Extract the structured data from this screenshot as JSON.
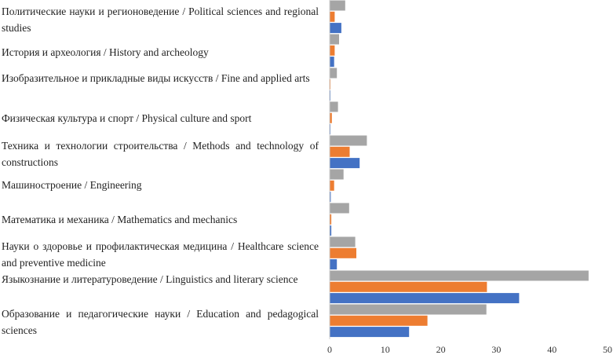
{
  "chart_data": {
    "type": "bar",
    "orientation": "horizontal",
    "title": "",
    "xlabel": "",
    "ylabel": "",
    "xlim": [
      0,
      50
    ],
    "x_ticks": [
      "0",
      "10",
      "20",
      "30",
      "40",
      "50"
    ],
    "grid": false,
    "legend": "none",
    "categories": [
      "Политические науки и регионоведение / Political sciences and regional studies",
      "История и археология / History and archeology",
      "Изобразительное и прикладные виды искусств / Fine and applied arts",
      "Физическая культура и спорт / Physical culture and sport",
      "Техника и технологии строительства / Methods and technology of constructions",
      "Машиностроение / Engineering",
      "Математика и механика / Mathematics and mechanics",
      "Науки о здоровье и профилактическая медицина / Healthcare science and preventive medicine",
      "Языкознание и литературоведение / Linguistics and literary science",
      "Образование и педагогические науки / Education and pedagogical sciences"
    ],
    "series": [
      {
        "color": "#a5a5a5",
        "values": [
          2.8,
          1.7,
          1.3,
          1.5,
          6.7,
          2.5,
          3.5,
          4.6,
          46.6,
          28.2
        ]
      },
      {
        "color": "#ed7d31",
        "values": [
          0.9,
          0.9,
          0.1,
          0.4,
          3.6,
          0.8,
          0.3,
          4.8,
          28.3,
          17.6
        ]
      },
      {
        "color": "#4472c4",
        "values": [
          2.1,
          0.8,
          0.1,
          0.1,
          5.4,
          0.2,
          0.3,
          1.3,
          34.1,
          14.3
        ]
      }
    ]
  }
}
